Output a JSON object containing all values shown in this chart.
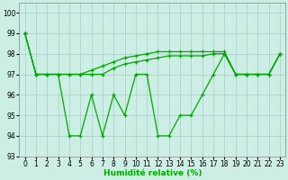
{
  "title": "",
  "xlabel": "Humidité relative (%)",
  "ylabel": "",
  "xlim": [
    -0.5,
    23.5
  ],
  "ylim": [
    93,
    100.5
  ],
  "yticks": [
    93,
    94,
    95,
    96,
    97,
    98,
    99,
    100
  ],
  "xticks": [
    0,
    1,
    2,
    3,
    4,
    5,
    6,
    7,
    8,
    9,
    10,
    11,
    12,
    13,
    14,
    15,
    16,
    17,
    18,
    19,
    20,
    21,
    22,
    23
  ],
  "background_color": "#cceee4",
  "grid_color": "#aacccc",
  "line_color": "#00aa00",
  "series_volatile": [
    99,
    97,
    97,
    97,
    94,
    94,
    96,
    94,
    96,
    95,
    97,
    97,
    94,
    94,
    95,
    95,
    96,
    97,
    98,
    97,
    97,
    97,
    97,
    98
  ],
  "series_upper1": [
    99,
    97,
    97,
    97,
    97,
    97,
    97,
    97,
    97.3,
    97.5,
    97.6,
    97.7,
    97.8,
    97.9,
    97.9,
    97.9,
    97.9,
    98,
    98,
    97,
    97,
    97,
    97,
    98
  ],
  "series_upper2": [
    99,
    97,
    97,
    97,
    97,
    97,
    97.2,
    97.4,
    97.6,
    97.8,
    97.9,
    98.0,
    98.1,
    98.1,
    98.1,
    98.1,
    98.1,
    98.1,
    98.1,
    97,
    97,
    97,
    97,
    98
  ]
}
